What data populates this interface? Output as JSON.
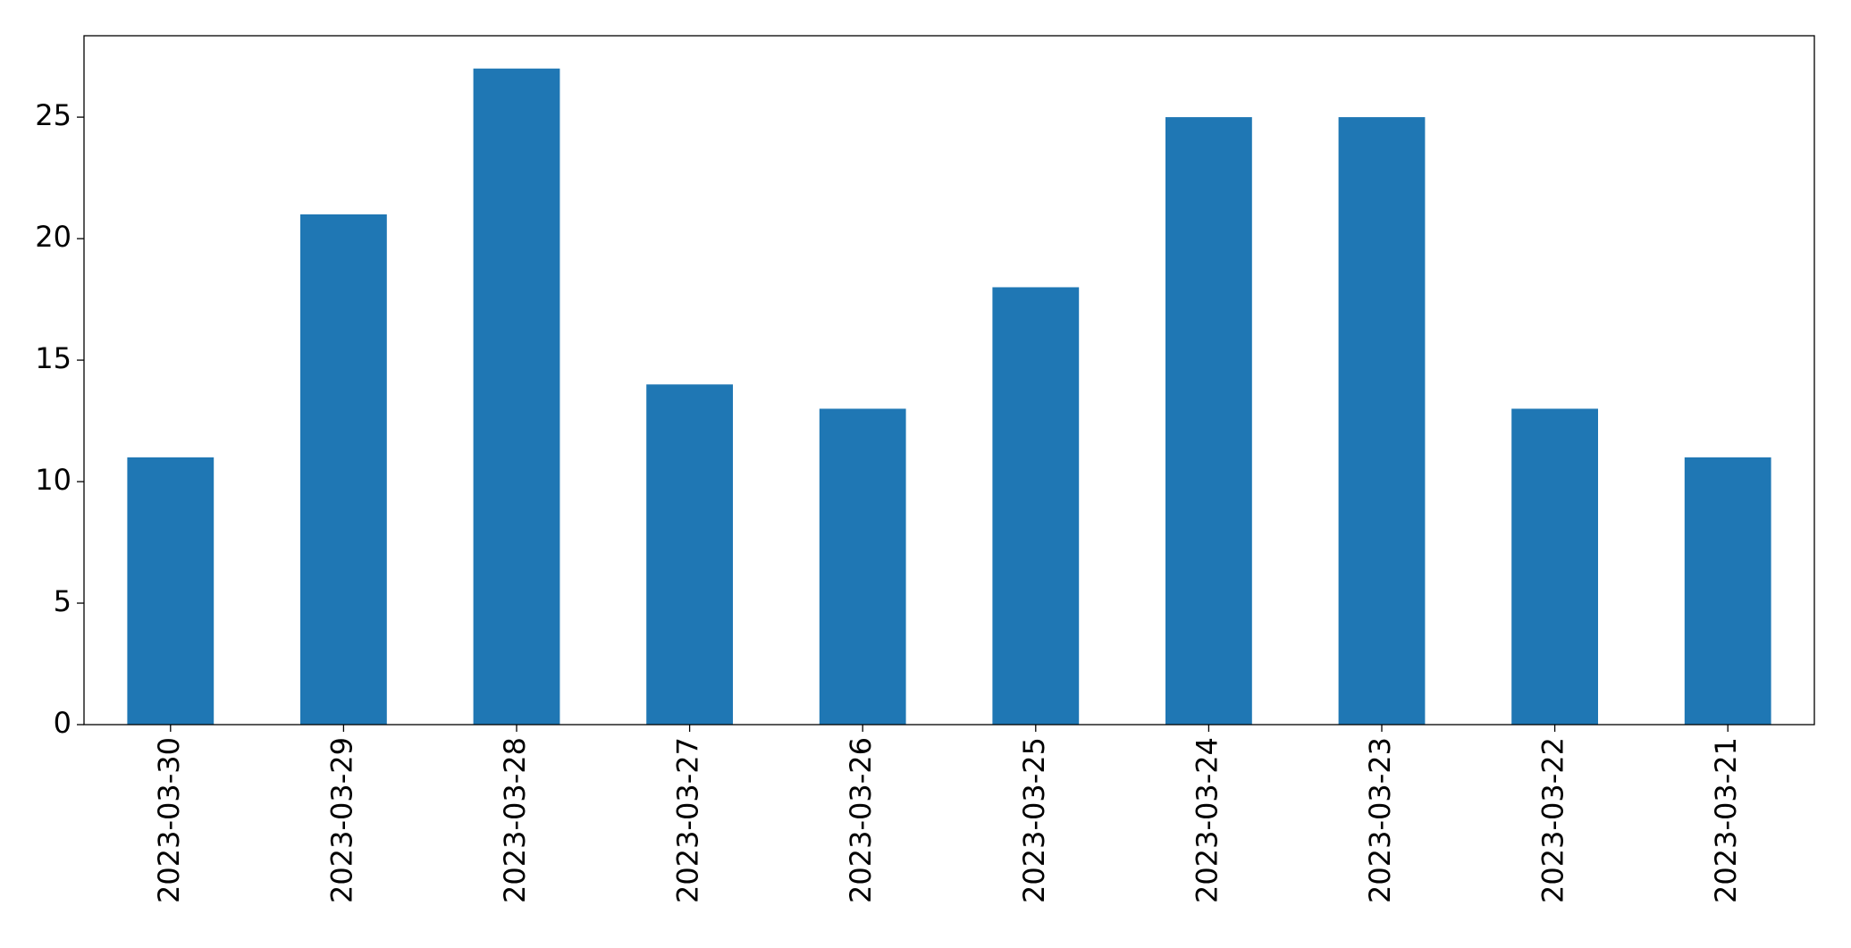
{
  "chart_data": {
    "type": "bar",
    "categories": [
      "2023-03-30",
      "2023-03-29",
      "2023-03-28",
      "2023-03-27",
      "2023-03-26",
      "2023-03-25",
      "2023-03-24",
      "2023-03-23",
      "2023-03-22",
      "2023-03-21"
    ],
    "values": [
      11,
      21,
      27,
      14,
      13,
      18,
      25,
      25,
      13,
      11
    ],
    "color": "#1f77b4",
    "ylim": [
      0,
      28.35
    ],
    "yticks": [
      0,
      5,
      10,
      15,
      20,
      25
    ],
    "grid": false
  }
}
